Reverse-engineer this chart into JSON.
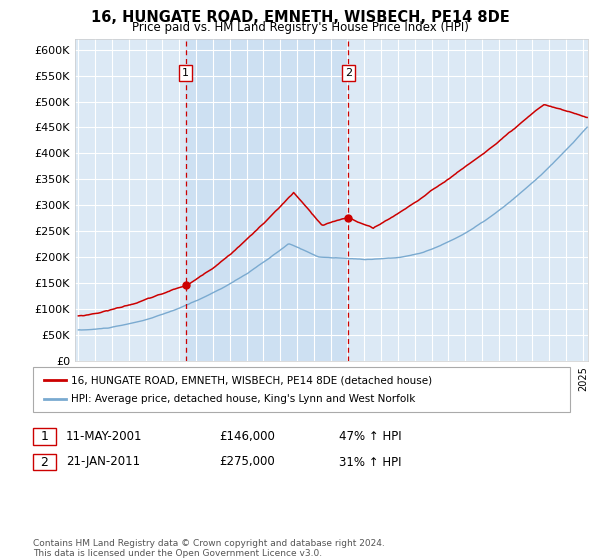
{
  "title": "16, HUNGATE ROAD, EMNETH, WISBECH, PE14 8DE",
  "subtitle": "Price paid vs. HM Land Registry's House Price Index (HPI)",
  "red_label": "16, HUNGATE ROAD, EMNETH, WISBECH, PE14 8DE (detached house)",
  "blue_label": "HPI: Average price, detached house, King's Lynn and West Norfolk",
  "annotation1_date": "11-MAY-2001",
  "annotation1_price": "£146,000",
  "annotation1_hpi": "47% ↑ HPI",
  "annotation2_date": "21-JAN-2011",
  "annotation2_price": "£275,000",
  "annotation2_hpi": "31% ↑ HPI",
  "footnote": "Contains HM Land Registry data © Crown copyright and database right 2024.\nThis data is licensed under the Open Government Licence v3.0.",
  "ylim": [
    0,
    620000
  ],
  "yticks": [
    0,
    50000,
    100000,
    150000,
    200000,
    250000,
    300000,
    350000,
    400000,
    450000,
    500000,
    550000,
    600000
  ],
  "plot_bg": "#dce9f5",
  "shade_color": "#ccdff2",
  "red_color": "#cc0000",
  "blue_color": "#7aaad0",
  "vline_color": "#cc0000",
  "marker1_x": 2001.37,
  "marker1_y": 146000,
  "marker2_x": 2011.05,
  "marker2_y": 275000,
  "xmin": 1994.8,
  "xmax": 2025.3
}
